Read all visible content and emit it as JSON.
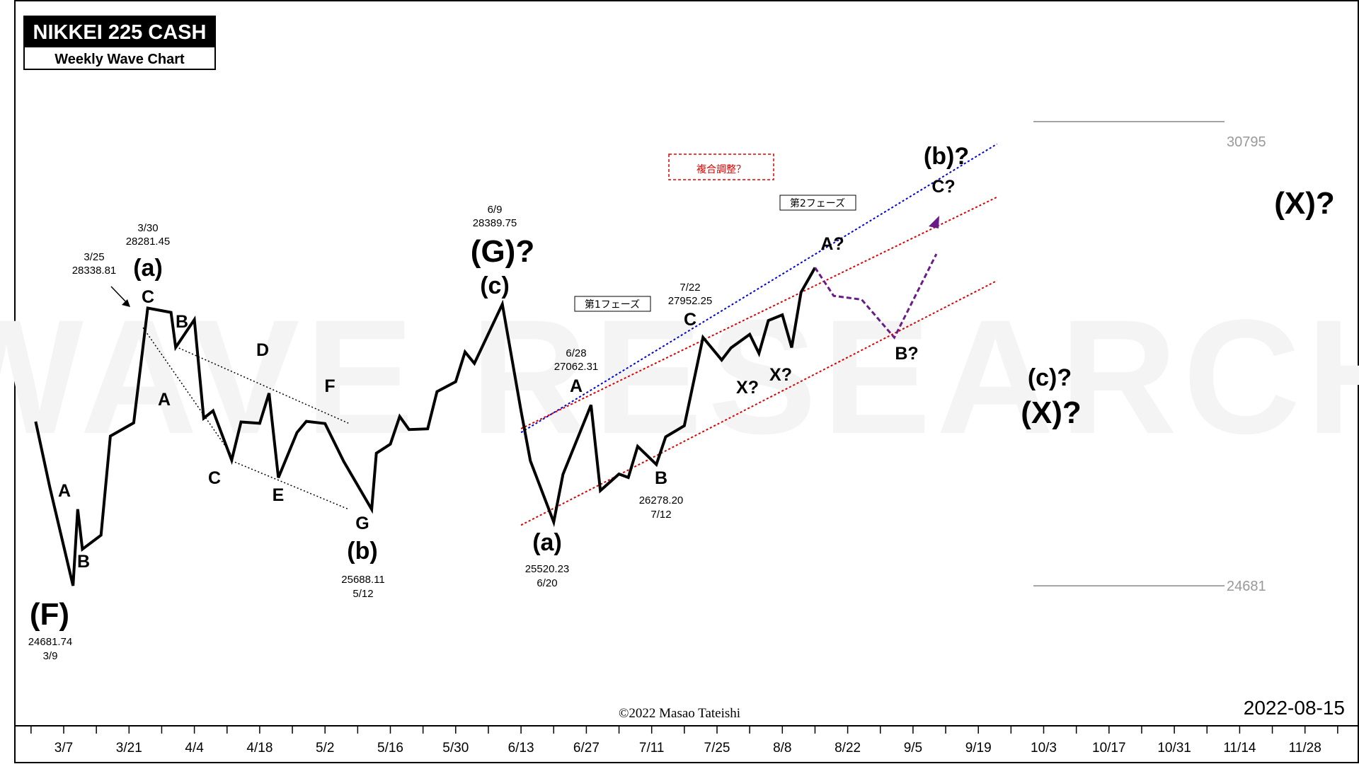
{
  "header": {
    "title": "NIKKEI 225 CASH",
    "subtitle": "Weekly Wave Chart"
  },
  "watermark": "WAVE RESEARCH",
  "copyright": "©2022 Masao Tateishi",
  "chart_date": "2022-08-15",
  "chart_data": {
    "type": "line",
    "x_ticks": [
      "3/7",
      "3/21",
      "4/4",
      "4/18",
      "5/2",
      "5/16",
      "5/30",
      "6/13",
      "6/27",
      "7/11",
      "7/25",
      "8/8",
      "8/22",
      "9/5",
      "9/19",
      "10/3",
      "10/17",
      "10/31",
      "11/14",
      "11/28"
    ],
    "price_line": [
      [
        "3/1",
        26844
      ],
      [
        "3/4",
        25985
      ],
      [
        "3/9",
        24681.74
      ],
      [
        "3/10",
        25690
      ],
      [
        "3/11",
        25163
      ],
      [
        "3/15",
        25347
      ],
      [
        "3/17",
        26652
      ],
      [
        "3/22",
        26827
      ],
      [
        "3/25",
        28338.81
      ],
      [
        "3/30",
        28281.45
      ],
      [
        "3/31",
        27821
      ],
      [
        "4/4",
        28186
      ],
      [
        "4/6",
        26888
      ],
      [
        "4/8",
        26986
      ],
      [
        "4/12",
        26335
      ],
      [
        "4/14",
        26839
      ],
      [
        "4/18",
        26821
      ],
      [
        "4/20",
        27217
      ],
      [
        "4/22",
        26105
      ],
      [
        "4/26",
        26700
      ],
      [
        "4/28",
        26847
      ],
      [
        "5/2",
        26818
      ],
      [
        "5/6",
        26319
      ],
      [
        "5/12",
        25688.11
      ],
      [
        "5/13",
        26427
      ],
      [
        "5/16",
        26547
      ],
      [
        "5/18",
        26911
      ],
      [
        "5/20",
        26739
      ],
      [
        "5/24",
        26748
      ],
      [
        "5/26",
        27238
      ],
      [
        "5/30",
        27369
      ],
      [
        "6/1",
        27761
      ],
      [
        "6/3",
        27610
      ],
      [
        "6/9",
        28389.75
      ],
      [
        "6/13",
        26987
      ],
      [
        "6/15",
        26326
      ],
      [
        "6/20",
        25520.23
      ],
      [
        "6/22",
        26149
      ],
      [
        "6/28",
        27062.31
      ],
      [
        "6/30",
        25935
      ],
      [
        "7/4",
        26153
      ],
      [
        "7/6",
        26107
      ],
      [
        "7/8",
        26517
      ],
      [
        "7/12",
        26278.2
      ],
      [
        "7/14",
        26643
      ],
      [
        "7/18",
        26788
      ],
      [
        "7/22",
        27952.25
      ],
      [
        "7/26",
        27655
      ],
      [
        "7/28",
        27815
      ],
      [
        "8/1",
        27993
      ],
      [
        "8/3",
        27742
      ],
      [
        "8/5",
        28175
      ],
      [
        "8/8",
        28249
      ],
      [
        "8/10",
        27819
      ],
      [
        "8/12",
        28546
      ],
      [
        "8/15",
        28871
      ]
    ],
    "forecast_path": [
      [
        "8/15",
        28871
      ],
      [
        "8/19",
        28500
      ],
      [
        "8/25",
        28450
      ],
      [
        "9/1",
        27950
      ],
      [
        "9/10",
        29050
      ]
    ],
    "levels": [
      30795,
      24681
    ],
    "channel_lines": [
      {
        "color": "#0000dd",
        "from": [
          "6/13",
          26700
        ],
        "to": [
          "9/23",
          30500
        ]
      },
      {
        "color": "#dd0000",
        "from": [
          "6/13",
          26750
        ],
        "to": [
          "9/23",
          29800
        ]
      },
      {
        "color": "#dd0000",
        "from": [
          "6/13",
          25480
        ],
        "to": [
          "9/23",
          28700
        ]
      }
    ],
    "wedge_lines": [
      {
        "from": [
          "3/31",
          27831
        ],
        "to": [
          "5/7",
          26823
        ]
      },
      {
        "from": [
          "4/12",
          26327
        ],
        "to": [
          "5/7",
          25690
        ]
      },
      {
        "from": [
          "3/24",
          28081
        ],
        "to": [
          "4/12",
          26400
        ]
      }
    ]
  },
  "labels": {
    "F_label": "(F)",
    "F_value": "24681.74",
    "F_date": "3/9",
    "A1": "A",
    "B1": "B",
    "a1_note_date": "3/25",
    "a1_note_value": "28338.81",
    "a1_top_date": "3/30",
    "a1_top_value": "28281.45",
    "a1_label": "(a)",
    "C1": "C",
    "B2": "B",
    "A2": "A",
    "C2": "C",
    "D2": "D",
    "E2": "E",
    "F2": "F",
    "G2": "G",
    "b1_label": "(b)",
    "b1_value": "25688.11",
    "b1_date": "5/12",
    "G_date": "6/9",
    "G_value": "28389.75",
    "G_label": "(G)?",
    "c1_label": "(c)",
    "a2_label": "(a)",
    "a2_value": "25520.23",
    "a2_date": "6/20",
    "phase1": "第1フェーズ",
    "A3_date": "6/28",
    "A3_value": "27062.31",
    "A3": "A",
    "B3": "B",
    "B3_value": "26278.20",
    "B3_date": "7/12",
    "C3_date": "7/22",
    "C3_value": "27952.25",
    "C3": "C",
    "X1": "X?",
    "X2": "X?",
    "complex": "複合調整？",
    "phase2": "第2フェーズ",
    "A4": "A?",
    "B4": "B?",
    "C4": "C?",
    "b2_label": "(b)?",
    "c2_label": "(c)?",
    "X3_label": "(X)?",
    "X4_label": "(X)?",
    "level_high": "30795",
    "level_low": "24681"
  }
}
